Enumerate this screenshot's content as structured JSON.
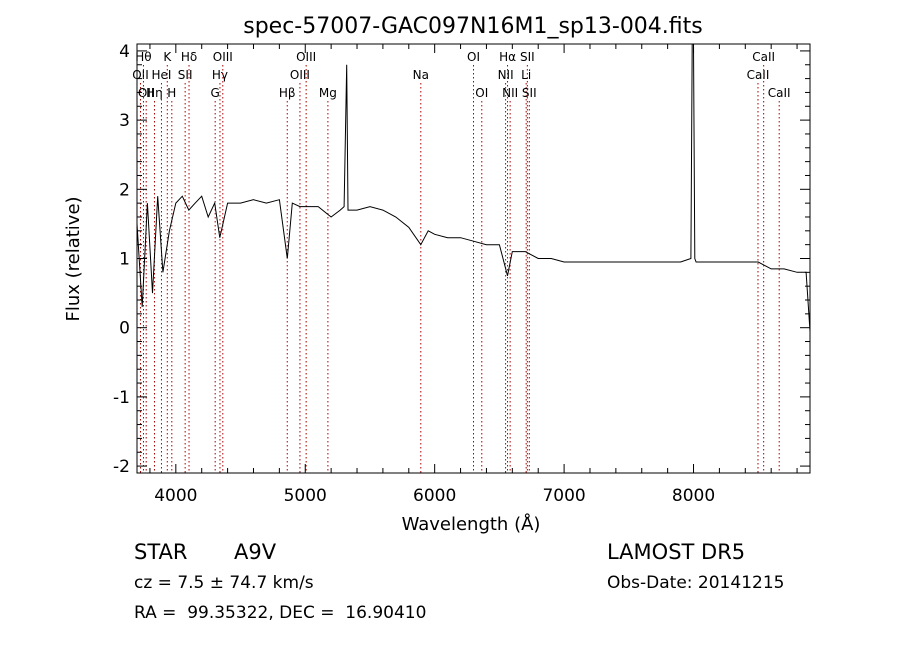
{
  "chart_data": {
    "type": "line",
    "title": "spec-57007-GAC097N16M1_sp13-004.fits",
    "xlabel": "Wavelength (Å)",
    "ylabel": "Flux (relative)",
    "xlim": [
      3700,
      8900
    ],
    "ylim": [
      -2.1,
      4.1
    ],
    "x_ticks": [
      4000,
      5000,
      6000,
      7000,
      8000
    ],
    "y_ticks": [
      -2,
      -1,
      0,
      1,
      2,
      3,
      4
    ],
    "grid": false,
    "line_color": "#000000",
    "marker_color": "#aa0000",
    "series": [
      {
        "x": [
          3700,
          3740,
          3780,
          3820,
          3860,
          3900,
          3950,
          4000,
          4050,
          4100,
          4150,
          4200,
          4250,
          4300,
          4340,
          4400,
          4500,
          4600,
          4700,
          4800,
          4861,
          4900,
          4959,
          5007,
          5100,
          5200,
          5270,
          5300,
          5320,
          5330,
          5350,
          5400,
          5500,
          5600,
          5700,
          5800,
          5893,
          5950,
          6000,
          6100,
          6200,
          6300,
          6400,
          6500,
          6563,
          6600,
          6700,
          6800,
          6900,
          7000,
          7100,
          7200,
          7300,
          7400,
          7500,
          7600,
          7700,
          7800,
          7900,
          7980,
          7990,
          8000,
          8010,
          8020,
          8100,
          8200,
          8300,
          8400,
          8500,
          8600,
          8700,
          8800,
          8870,
          8900
        ],
        "y": [
          1.5,
          0.3,
          1.8,
          0.5,
          1.9,
          0.8,
          1.4,
          1.8,
          1.9,
          1.7,
          1.8,
          1.9,
          1.6,
          1.8,
          1.3,
          1.8,
          1.8,
          1.85,
          1.8,
          1.85,
          1.0,
          1.8,
          1.75,
          1.75,
          1.75,
          1.6,
          1.7,
          1.75,
          3.8,
          1.7,
          1.7,
          1.7,
          1.75,
          1.7,
          1.6,
          1.45,
          1.2,
          1.4,
          1.35,
          1.3,
          1.3,
          1.25,
          1.2,
          1.2,
          0.75,
          1.1,
          1.1,
          1.0,
          1.0,
          0.95,
          0.95,
          0.95,
          0.95,
          0.95,
          0.95,
          0.95,
          0.95,
          0.95,
          0.95,
          1.0,
          4.1,
          4.1,
          1.0,
          0.95,
          0.95,
          0.95,
          0.95,
          0.95,
          0.95,
          0.85,
          0.85,
          0.8,
          0.8,
          -0.05
        ]
      }
    ],
    "lines": [
      {
        "x": 3727,
        "label": "OII",
        "row": 1
      },
      {
        "x": 3750,
        "label": "Hθ",
        "row": 0
      },
      {
        "x": 3771,
        "label": "OII",
        "row": 2
      },
      {
        "x": 3835,
        "label": "Hη",
        "row": 2
      },
      {
        "x": 3889,
        "label": "HeI",
        "row": 1
      },
      {
        "x": 3934,
        "label": "K",
        "row": 0
      },
      {
        "x": 3969,
        "label": "H",
        "row": 2
      },
      {
        "x": 4072,
        "label": "SII",
        "row": 1
      },
      {
        "x": 4102,
        "label": "Hδ",
        "row": 0
      },
      {
        "x": 4304,
        "label": "G",
        "row": 2
      },
      {
        "x": 4341,
        "label": "Hγ",
        "row": 1
      },
      {
        "x": 4363,
        "label": "OIII",
        "row": 0
      },
      {
        "x": 4861,
        "label": "Hβ",
        "row": 2
      },
      {
        "x": 4959,
        "label": "OIII",
        "row": 1
      },
      {
        "x": 5007,
        "label": "OIII",
        "row": 0
      },
      {
        "x": 5175,
        "label": "Mg",
        "row": 2
      },
      {
        "x": 5893,
        "label": "Na",
        "row": 1
      },
      {
        "x": 6300,
        "label": "OI",
        "row": 0
      },
      {
        "x": 6364,
        "label": "OI",
        "row": 2
      },
      {
        "x": 6548,
        "label": "NII",
        "row": 1
      },
      {
        "x": 6563,
        "label": "Hα",
        "row": 0
      },
      {
        "x": 6583,
        "label": "NII",
        "row": 2
      },
      {
        "x": 6707,
        "label": "Li",
        "row": 1
      },
      {
        "x": 6716,
        "label": "SII",
        "row": 0
      },
      {
        "x": 6731,
        "label": "SII",
        "row": 2
      },
      {
        "x": 8498,
        "label": "CaII",
        "row": 1
      },
      {
        "x": 8542,
        "label": "CaII",
        "row": 0
      },
      {
        "x": 8662,
        "label": "CaII",
        "row": 2
      }
    ]
  },
  "info": {
    "class_label": "STAR",
    "subclass": "A9V",
    "survey": "LAMOST DR5",
    "cz": "cz = 7.5 ± 74.7 km/s",
    "obs_date": "Obs-Date: 20141215",
    "radec": "RA =  99.35322, DEC =  16.90410"
  }
}
